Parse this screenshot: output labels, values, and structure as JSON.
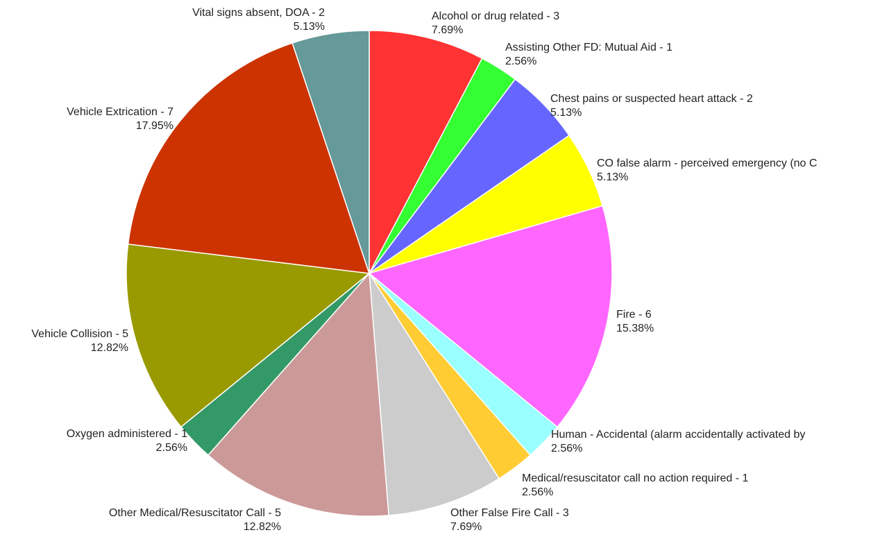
{
  "chart_data": {
    "type": "pie",
    "title": "",
    "start_angle_deg": 0,
    "direction": "clockwise",
    "slices": [
      {
        "label": "Alcohol or drug related - 3",
        "value": 3,
        "percent": "7.69%",
        "color": "#ff3333"
      },
      {
        "label": "Assisting Other FD: Mutual Aid - 1",
        "value": 1,
        "percent": "2.56%",
        "color": "#33ff33"
      },
      {
        "label": "Chest pains or suspected heart attack - 2",
        "value": 2,
        "percent": "5.13%",
        "color": "#6666ff"
      },
      {
        "label": "CO false alarm - perceived emergency (no C",
        "value": 2,
        "percent": "5.13%",
        "color": "#ffff00"
      },
      {
        "label": "Fire - 6",
        "value": 6,
        "percent": "15.38%",
        "color": "#ff66ff"
      },
      {
        "label": "Human - Accidental (alarm accidentally activated by",
        "value": 1,
        "percent": "2.56%",
        "color": "#99ffff"
      },
      {
        "label": "Medical/resuscitator call no action required - 1",
        "value": 1,
        "percent": "2.56%",
        "color": "#ffcc33"
      },
      {
        "label": "Other False Fire Call - 3",
        "value": 3,
        "percent": "7.69%",
        "color": "#cccccc"
      },
      {
        "label": "Other Medical/Resuscitator Call - 5",
        "value": 5,
        "percent": "12.82%",
        "color": "#cc9999"
      },
      {
        "label": "Oxygen administered - 1",
        "value": 1,
        "percent": "2.56%",
        "color": "#339966"
      },
      {
        "label": "Vehicle Collision - 5",
        "value": 5,
        "percent": "12.82%",
        "color": "#999900"
      },
      {
        "label": "Vehicle Extrication - 7",
        "value": 7,
        "percent": "17.95%",
        "color": "#cc3300"
      },
      {
        "label": "Vital signs absent, DOA - 2",
        "value": 2,
        "percent": "5.13%",
        "color": "#669999"
      }
    ]
  }
}
